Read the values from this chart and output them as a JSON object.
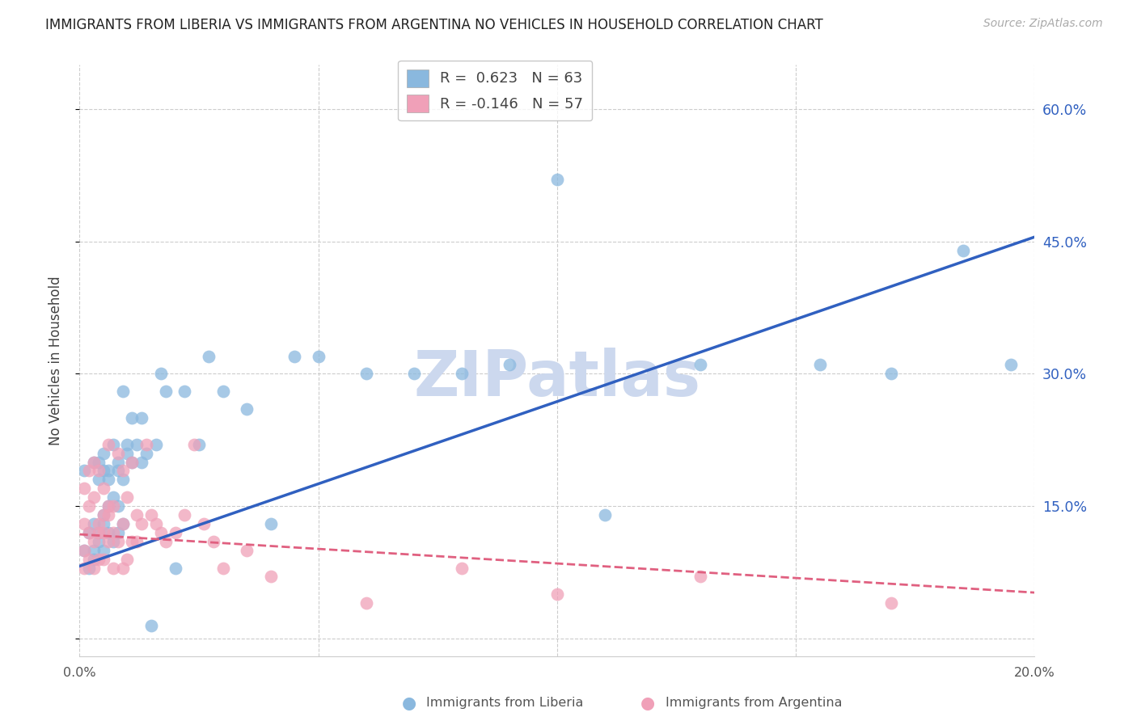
{
  "title": "IMMIGRANTS FROM LIBERIA VS IMMIGRANTS FROM ARGENTINA NO VEHICLES IN HOUSEHOLD CORRELATION CHART",
  "source": "Source: ZipAtlas.com",
  "ylabel": "No Vehicles in Household",
  "xlim": [
    0.0,
    0.2
  ],
  "ylim": [
    -0.02,
    0.65
  ],
  "liberia_R": 0.623,
  "liberia_N": 63,
  "argentina_R": -0.146,
  "argentina_N": 57,
  "liberia_color": "#8ab8de",
  "argentina_color": "#f0a0b8",
  "liberia_line_color": "#3060c0",
  "argentina_line_color": "#e06080",
  "watermark_text": "ZIPatlas",
  "watermark_color": "#ccd8ee",
  "right_yticks": [
    0.0,
    0.15,
    0.3,
    0.45,
    0.6
  ],
  "right_yticklabels": [
    "",
    "15.0%",
    "30.0%",
    "45.0%",
    "60.0%"
  ],
  "liberia_line_x0": 0.0,
  "liberia_line_y0": 0.082,
  "liberia_line_x1": 0.2,
  "liberia_line_y1": 0.455,
  "argentina_line_x0": 0.0,
  "argentina_line_y0": 0.118,
  "argentina_line_x1": 0.2,
  "argentina_line_y1": 0.052,
  "liberia_x": [
    0.001,
    0.001,
    0.002,
    0.002,
    0.003,
    0.003,
    0.003,
    0.003,
    0.004,
    0.004,
    0.004,
    0.004,
    0.005,
    0.005,
    0.005,
    0.005,
    0.005,
    0.006,
    0.006,
    0.006,
    0.006,
    0.007,
    0.007,
    0.007,
    0.008,
    0.008,
    0.008,
    0.008,
    0.009,
    0.009,
    0.009,
    0.01,
    0.01,
    0.011,
    0.011,
    0.012,
    0.013,
    0.013,
    0.014,
    0.015,
    0.016,
    0.017,
    0.018,
    0.02,
    0.022,
    0.025,
    0.027,
    0.03,
    0.035,
    0.04,
    0.045,
    0.05,
    0.06,
    0.07,
    0.08,
    0.09,
    0.1,
    0.11,
    0.13,
    0.155,
    0.17,
    0.185,
    0.195
  ],
  "liberia_y": [
    0.1,
    0.19,
    0.08,
    0.12,
    0.09,
    0.1,
    0.13,
    0.2,
    0.11,
    0.12,
    0.18,
    0.2,
    0.1,
    0.13,
    0.14,
    0.19,
    0.21,
    0.12,
    0.15,
    0.18,
    0.19,
    0.11,
    0.16,
    0.22,
    0.12,
    0.15,
    0.19,
    0.2,
    0.13,
    0.18,
    0.28,
    0.21,
    0.22,
    0.2,
    0.25,
    0.22,
    0.2,
    0.25,
    0.21,
    0.015,
    0.22,
    0.3,
    0.28,
    0.08,
    0.28,
    0.22,
    0.32,
    0.28,
    0.26,
    0.13,
    0.32,
    0.32,
    0.3,
    0.3,
    0.3,
    0.31,
    0.52,
    0.14,
    0.31,
    0.31,
    0.3,
    0.44,
    0.31
  ],
  "argentina_x": [
    0.001,
    0.001,
    0.001,
    0.001,
    0.002,
    0.002,
    0.002,
    0.002,
    0.003,
    0.003,
    0.003,
    0.003,
    0.004,
    0.004,
    0.004,
    0.004,
    0.005,
    0.005,
    0.005,
    0.005,
    0.006,
    0.006,
    0.006,
    0.006,
    0.007,
    0.007,
    0.007,
    0.008,
    0.008,
    0.009,
    0.009,
    0.009,
    0.01,
    0.01,
    0.011,
    0.011,
    0.012,
    0.012,
    0.013,
    0.014,
    0.015,
    0.016,
    0.017,
    0.018,
    0.02,
    0.022,
    0.024,
    0.026,
    0.028,
    0.03,
    0.035,
    0.04,
    0.06,
    0.08,
    0.1,
    0.13,
    0.17
  ],
  "argentina_y": [
    0.08,
    0.1,
    0.13,
    0.17,
    0.09,
    0.12,
    0.15,
    0.19,
    0.08,
    0.11,
    0.16,
    0.2,
    0.09,
    0.12,
    0.13,
    0.19,
    0.09,
    0.12,
    0.14,
    0.17,
    0.11,
    0.14,
    0.15,
    0.22,
    0.08,
    0.12,
    0.15,
    0.11,
    0.21,
    0.08,
    0.13,
    0.19,
    0.09,
    0.16,
    0.11,
    0.2,
    0.11,
    0.14,
    0.13,
    0.22,
    0.14,
    0.13,
    0.12,
    0.11,
    0.12,
    0.14,
    0.22,
    0.13,
    0.11,
    0.08,
    0.1,
    0.07,
    0.04,
    0.08,
    0.05,
    0.07,
    0.04
  ]
}
